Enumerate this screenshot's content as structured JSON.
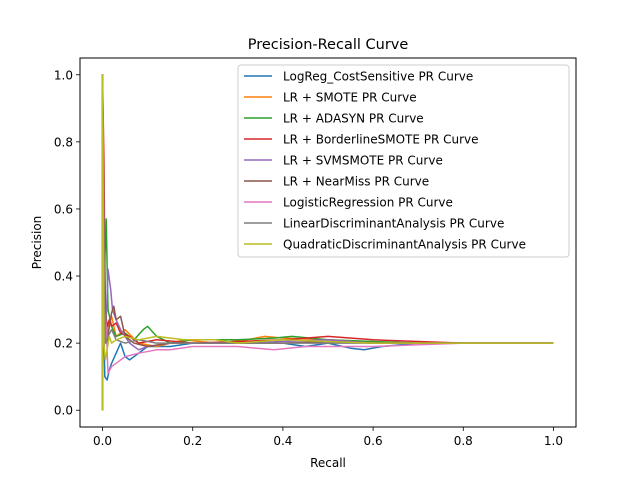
{
  "chart_data": {
    "type": "line",
    "title": "Precision-Recall Curve",
    "xlabel": "Recall",
    "ylabel": "Precision",
    "xlim": [
      -0.05,
      1.05
    ],
    "ylim": [
      -0.05,
      1.05
    ],
    "xticks": [
      0.0,
      0.2,
      0.4,
      0.6,
      0.8,
      1.0
    ],
    "yticks": [
      0.0,
      0.2,
      0.4,
      0.6,
      0.8,
      1.0
    ],
    "xtick_labels": [
      "0.0",
      "0.2",
      "0.4",
      "0.6",
      "0.8",
      "1.0"
    ],
    "ytick_labels": [
      "0.0",
      "0.2",
      "0.4",
      "0.6",
      "0.8",
      "1.0"
    ],
    "grid": false,
    "legend_position": "upper right",
    "series": [
      {
        "name": "LogReg_CostSensitive PR Curve",
        "color": "#1f77b4",
        "x": [
          0.0,
          0.0,
          0.002,
          0.005,
          0.01,
          0.015,
          0.02,
          0.03,
          0.04,
          0.05,
          0.06,
          0.08,
          0.1,
          0.15,
          0.2,
          0.3,
          0.4,
          0.45,
          0.5,
          0.55,
          0.58,
          0.62,
          0.7,
          0.8,
          0.9,
          1.0
        ],
        "y": [
          0.0,
          1.0,
          0.3,
          0.1,
          0.09,
          0.12,
          0.14,
          0.17,
          0.2,
          0.16,
          0.15,
          0.17,
          0.19,
          0.19,
          0.2,
          0.2,
          0.2,
          0.19,
          0.2,
          0.185,
          0.18,
          0.19,
          0.2,
          0.2,
          0.2,
          0.2
        ]
      },
      {
        "name": "LR + SMOTE PR Curve",
        "color": "#ff7f0e",
        "x": [
          0.0,
          0.0,
          0.003,
          0.007,
          0.012,
          0.02,
          0.03,
          0.05,
          0.08,
          0.12,
          0.18,
          0.25,
          0.32,
          0.36,
          0.4,
          0.5,
          0.6,
          0.7,
          0.8,
          0.9,
          1.0
        ],
        "y": [
          0.0,
          1.0,
          0.35,
          0.2,
          0.25,
          0.28,
          0.22,
          0.24,
          0.2,
          0.19,
          0.21,
          0.2,
          0.21,
          0.22,
          0.215,
          0.21,
          0.2,
          0.2,
          0.2,
          0.2,
          0.2
        ]
      },
      {
        "name": "LR + ADASYN PR Curve",
        "color": "#2ca02c",
        "x": [
          0.0,
          0.0,
          0.004,
          0.008,
          0.012,
          0.02,
          0.03,
          0.05,
          0.07,
          0.09,
          0.1,
          0.12,
          0.15,
          0.2,
          0.3,
          0.38,
          0.42,
          0.5,
          0.6,
          0.7,
          0.8,
          0.9,
          1.0
        ],
        "y": [
          0.0,
          1.0,
          0.4,
          0.57,
          0.3,
          0.25,
          0.22,
          0.23,
          0.21,
          0.24,
          0.25,
          0.22,
          0.2,
          0.21,
          0.21,
          0.215,
          0.22,
          0.21,
          0.205,
          0.2,
          0.2,
          0.2,
          0.2
        ]
      },
      {
        "name": "LR + BorderlineSMOTE PR Curve",
        "color": "#d62728",
        "x": [
          0.0,
          0.0,
          0.003,
          0.006,
          0.01,
          0.015,
          0.02,
          0.03,
          0.04,
          0.06,
          0.08,
          0.12,
          0.2,
          0.3,
          0.4,
          0.45,
          0.5,
          0.6,
          0.7,
          0.8,
          0.9,
          1.0
        ],
        "y": [
          0.0,
          1.0,
          0.75,
          0.3,
          0.25,
          0.27,
          0.25,
          0.26,
          0.23,
          0.22,
          0.2,
          0.21,
          0.2,
          0.205,
          0.21,
          0.215,
          0.22,
          0.21,
          0.205,
          0.2,
          0.2,
          0.2
        ]
      },
      {
        "name": "LR + SVMSMOTE PR Curve",
        "color": "#9467bd",
        "x": [
          0.0,
          0.0,
          0.002,
          0.005,
          0.009,
          0.012,
          0.018,
          0.022,
          0.03,
          0.04,
          0.06,
          0.08,
          0.1,
          0.15,
          0.2,
          0.3,
          0.4,
          0.5,
          0.6,
          0.7,
          0.8,
          0.9,
          1.0
        ],
        "y": [
          0.0,
          1.0,
          0.5,
          0.2,
          0.3,
          0.42,
          0.36,
          0.3,
          0.27,
          0.24,
          0.2,
          0.18,
          0.19,
          0.2,
          0.2,
          0.2,
          0.205,
          0.21,
          0.2,
          0.2,
          0.2,
          0.2,
          0.2
        ]
      },
      {
        "name": "LR + NearMiss PR Curve",
        "color": "#8c564b",
        "x": [
          0.0,
          0.0,
          0.003,
          0.006,
          0.01,
          0.015,
          0.02,
          0.025,
          0.03,
          0.04,
          0.05,
          0.07,
          0.1,
          0.15,
          0.2,
          0.3,
          0.4,
          0.5,
          0.6,
          0.7,
          0.8,
          0.9,
          1.0
        ],
        "y": [
          0.0,
          1.0,
          0.6,
          0.3,
          0.2,
          0.25,
          0.29,
          0.31,
          0.27,
          0.28,
          0.22,
          0.2,
          0.19,
          0.2,
          0.2,
          0.2,
          0.2,
          0.205,
          0.2,
          0.2,
          0.2,
          0.2,
          0.2
        ]
      },
      {
        "name": "LogisticRegression PR Curve",
        "color": "#e377c2",
        "x": [
          0.0,
          0.0,
          0.004,
          0.008,
          0.012,
          0.02,
          0.03,
          0.05,
          0.08,
          0.12,
          0.15,
          0.2,
          0.3,
          0.38,
          0.45,
          0.5,
          0.55,
          0.6,
          0.7,
          0.8,
          0.9,
          1.0
        ],
        "y": [
          0.0,
          1.0,
          0.3,
          0.25,
          0.11,
          0.13,
          0.14,
          0.16,
          0.17,
          0.18,
          0.18,
          0.19,
          0.19,
          0.18,
          0.19,
          0.19,
          0.19,
          0.19,
          0.195,
          0.2,
          0.2,
          0.2
        ]
      },
      {
        "name": "LinearDiscriminantAnalysis PR Curve",
        "color": "#7f7f7f",
        "x": [
          0.0,
          0.0,
          0.003,
          0.007,
          0.012,
          0.02,
          0.03,
          0.05,
          0.08,
          0.12,
          0.2,
          0.3,
          0.4,
          0.5,
          0.6,
          0.7,
          0.8,
          0.9,
          1.0
        ],
        "y": [
          0.0,
          1.0,
          0.4,
          0.2,
          0.22,
          0.24,
          0.21,
          0.2,
          0.21,
          0.2,
          0.2,
          0.2,
          0.2,
          0.2,
          0.2,
          0.2,
          0.2,
          0.2,
          0.2
        ]
      },
      {
        "name": "QuadraticDiscriminantAnalysis PR Curve",
        "color": "#bcbd22",
        "x": [
          0.0,
          0.0,
          0.003,
          0.006,
          0.01,
          0.015,
          0.02,
          0.03,
          0.05,
          0.08,
          0.12,
          0.18,
          0.25,
          0.3,
          0.4,
          0.5,
          0.6,
          0.7,
          0.8,
          0.9,
          1.0
        ],
        "y": [
          0.0,
          1.0,
          0.2,
          0.15,
          0.18,
          0.22,
          0.2,
          0.21,
          0.22,
          0.21,
          0.22,
          0.21,
          0.21,
          0.2,
          0.21,
          0.205,
          0.2,
          0.2,
          0.2,
          0.2,
          0.2
        ]
      }
    ]
  }
}
